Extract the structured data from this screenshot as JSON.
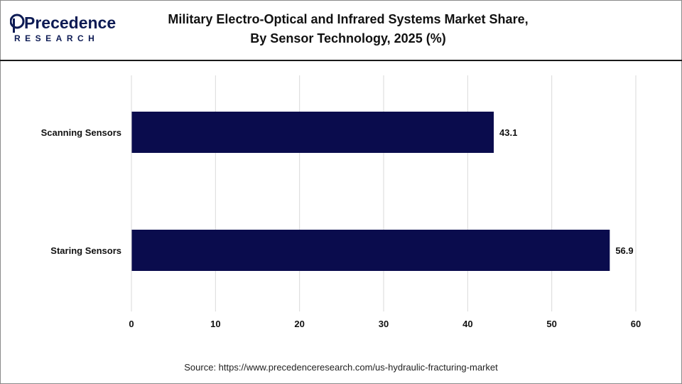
{
  "brand": {
    "name_main": "Precedence",
    "name_sub": "RESEARCH",
    "color": "#0d1b54"
  },
  "title": {
    "line1": "Military Electro-Optical and Infrared Systems Market Share,",
    "line2": "By Sensor Technology, 2025 (%)"
  },
  "source": "Source: https://www.precedenceresearch.com/us-hydraulic-fracturing-market",
  "chart_data": {
    "type": "bar",
    "orientation": "horizontal",
    "categories": [
      "Scanning Sensors",
      "Staring Sensors"
    ],
    "values": [
      43.1,
      56.9
    ],
    "data_labels": [
      "43.1",
      "56.9"
    ],
    "xlim": [
      0,
      60
    ],
    "xticks": [
      0,
      10,
      20,
      30,
      40,
      50,
      60
    ],
    "grid": "vertical",
    "bar_color": "#0a0c4d",
    "legend": "none"
  }
}
